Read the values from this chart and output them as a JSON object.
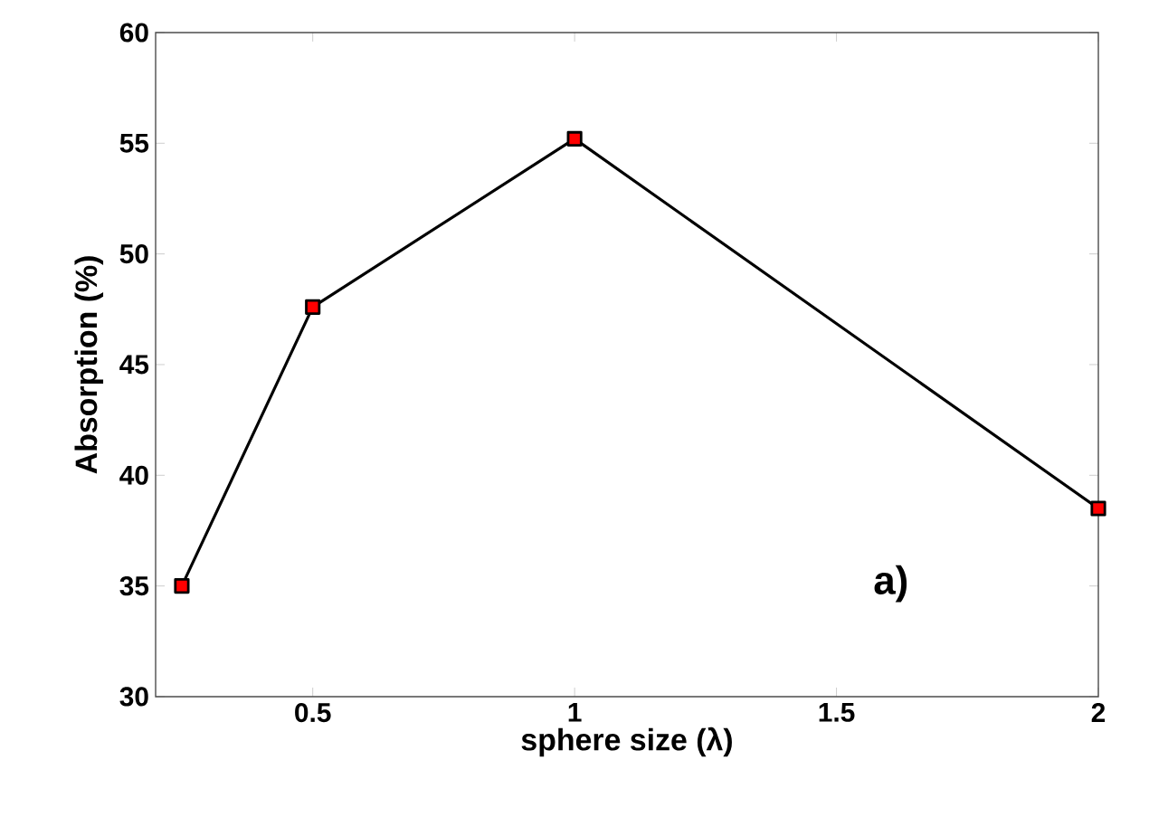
{
  "chart_data": {
    "type": "line",
    "xlabel": "sphere size (λ)",
    "ylabel": "Absorption (%)",
    "x": [
      0.25,
      0.5,
      1,
      2
    ],
    "series": [
      {
        "color": "#ff0000",
        "values": [
          35.0,
          47.6,
          55.2,
          38.5
        ]
      }
    ],
    "xlim": [
      0.2,
      2
    ],
    "xticks": [
      0.5,
      1,
      1.5,
      2
    ],
    "ylim": [
      30,
      60
    ],
    "yticks": [
      30,
      35,
      40,
      45,
      50,
      55,
      60
    ],
    "marker": "square",
    "line_style": "solid",
    "annotations": [
      "a)"
    ]
  }
}
